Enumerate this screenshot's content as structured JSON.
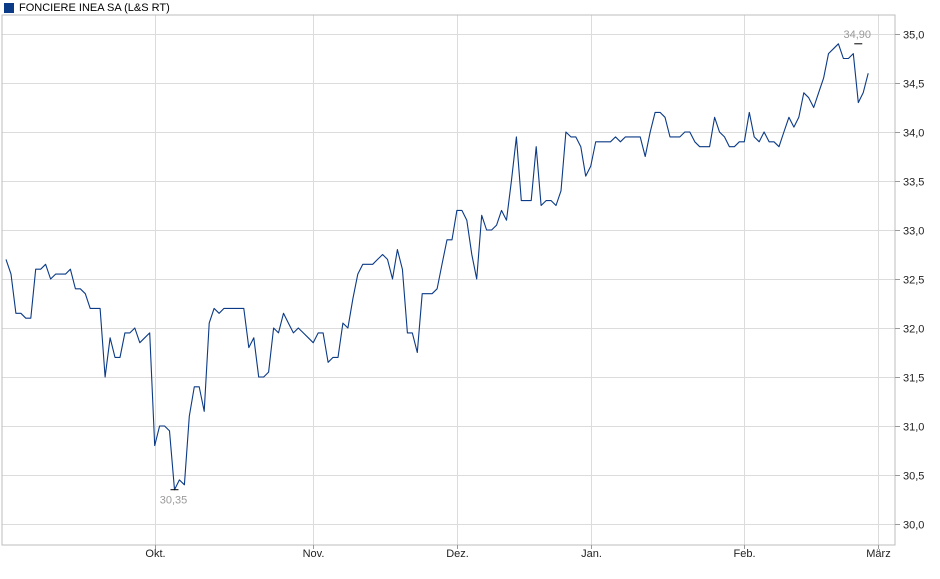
{
  "legend": {
    "label": "FONCIERE INEA SA (L&S RT)",
    "color": "#0b3a86"
  },
  "chart_data": {
    "type": "line",
    "title": "",
    "xlabel": "",
    "ylabel": "",
    "ylim": [
      29.8,
      35.1
    ],
    "y_ticks": [
      30.0,
      30.5,
      31.0,
      31.5,
      32.0,
      32.5,
      33.0,
      33.5,
      34.0,
      34.5,
      35.0
    ],
    "y_tick_labels": [
      "30,0",
      "30,5",
      "31,0",
      "31,5",
      "32,0",
      "32,5",
      "33,0",
      "33,5",
      "34,0",
      "34,5",
      "35,0"
    ],
    "x_range": [
      0,
      178
    ],
    "x_ticks": [
      {
        "x": 30,
        "label": "Okt."
      },
      {
        "x": 62,
        "label": "Nov."
      },
      {
        "x": 91,
        "label": "Dez."
      },
      {
        "x": 118,
        "label": "Jan."
      },
      {
        "x": 149,
        "label": "Feb."
      },
      {
        "x": 176,
        "label": "März"
      }
    ],
    "grid": true,
    "series": [
      {
        "name": "FONCIERE INEA SA (L&S RT)",
        "color": "#0b3a86",
        "values": [
          32.7,
          32.55,
          32.15,
          32.15,
          32.1,
          32.1,
          32.6,
          32.6,
          32.65,
          32.5,
          32.55,
          32.55,
          32.55,
          32.6,
          32.4,
          32.4,
          32.35,
          32.2,
          32.2,
          32.2,
          31.5,
          31.9,
          31.7,
          31.7,
          31.95,
          31.95,
          32.0,
          31.85,
          31.9,
          31.95,
          30.8,
          31.0,
          31.0,
          30.95,
          30.35,
          30.45,
          30.4,
          31.1,
          31.4,
          31.4,
          31.15,
          32.05,
          32.2,
          32.15,
          32.2,
          32.2,
          32.2,
          32.2,
          32.2,
          31.8,
          31.9,
          31.5,
          31.5,
          31.55,
          32.0,
          31.95,
          32.15,
          32.05,
          31.95,
          32.0,
          31.95,
          31.9,
          31.85,
          31.95,
          31.95,
          31.65,
          31.7,
          31.7,
          32.05,
          32.0,
          32.3,
          32.55,
          32.65,
          32.65,
          32.65,
          32.7,
          32.75,
          32.7,
          32.5,
          32.8,
          32.6,
          31.95,
          31.95,
          31.75,
          32.35,
          32.35,
          32.35,
          32.4,
          32.65,
          32.9,
          32.9,
          33.2,
          33.2,
          33.1,
          32.75,
          32.5,
          33.15,
          33.0,
          33.0,
          33.05,
          33.2,
          33.1,
          33.5,
          33.95,
          33.3,
          33.3,
          33.3,
          33.85,
          33.25,
          33.3,
          33.3,
          33.25,
          33.4,
          34.0,
          33.95,
          33.95,
          33.85,
          33.55,
          33.65,
          33.9,
          33.9,
          33.9,
          33.9,
          33.95,
          33.9,
          33.95,
          33.95,
          33.95,
          33.95,
          33.75,
          34.0,
          34.2,
          34.2,
          34.15,
          33.95,
          33.95,
          33.95,
          34.0,
          34.0,
          33.9,
          33.85,
          33.85,
          33.85,
          34.15,
          34.0,
          33.95,
          33.85,
          33.85,
          33.9,
          33.9,
          34.2,
          33.95,
          33.9,
          34.0,
          33.9,
          33.9,
          33.85,
          34.0,
          34.15,
          34.05,
          34.15,
          34.4,
          34.35,
          34.25,
          34.4,
          34.55,
          34.8,
          34.85,
          34.9,
          34.75,
          34.75,
          34.8,
          34.3,
          34.4,
          34.6
        ]
      }
    ],
    "annotations": [
      {
        "label": "34,90",
        "x": 172,
        "y": 34.9,
        "kind": "max"
      },
      {
        "label": "30,35",
        "x": 34,
        "y": 30.35,
        "kind": "min"
      }
    ]
  }
}
